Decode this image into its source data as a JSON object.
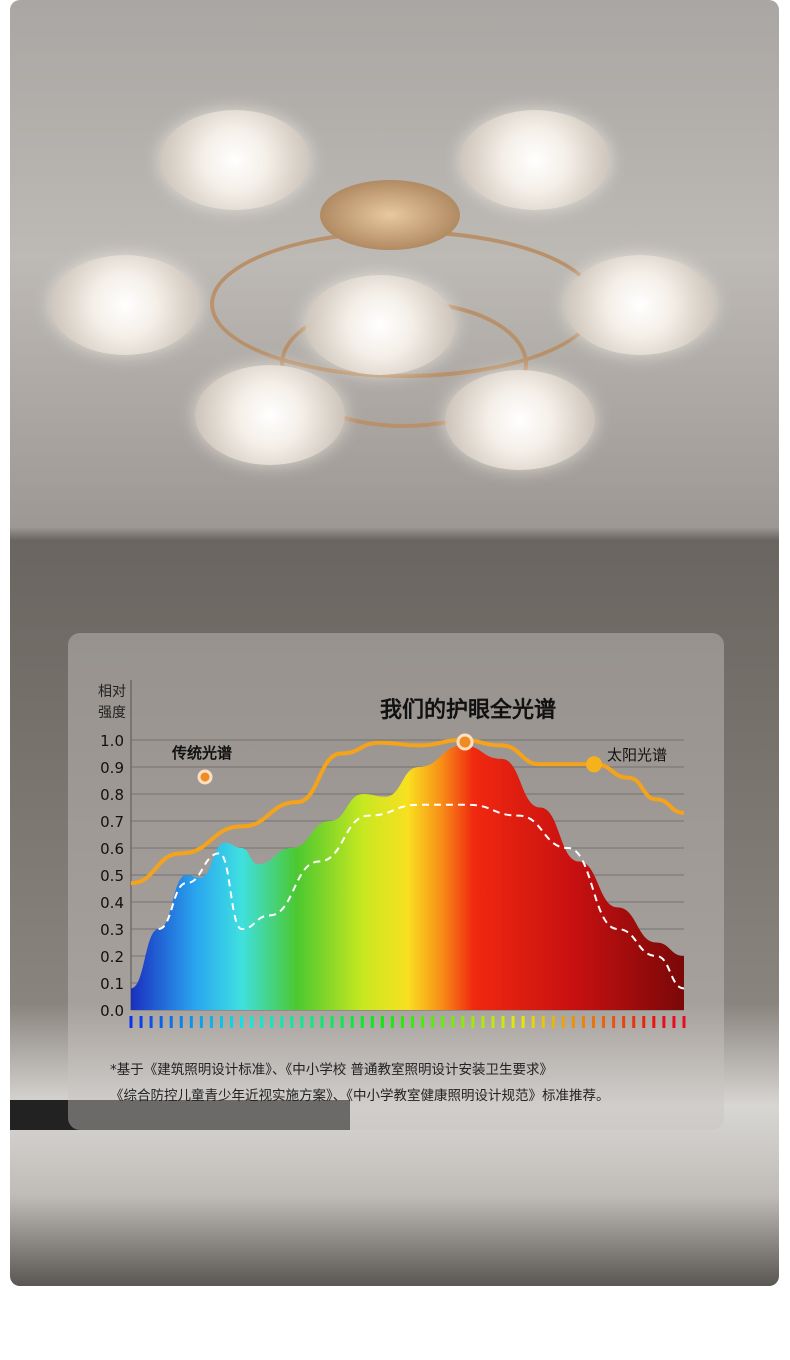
{
  "chart_data": {
    "type": "area",
    "title": "我们的护眼全光谱",
    "ylabel": "相对\n强度",
    "xlabel": "",
    "ylim": [
      0,
      1.0
    ],
    "yticks": [
      "0.0",
      "0.1",
      "0.2",
      "0.3",
      "0.4",
      "0.5",
      "0.6",
      "0.7",
      "0.8",
      "0.9",
      "1.0"
    ],
    "grid": true,
    "series": [
      {
        "name": "我们的护眼全光谱",
        "style": "gradient-fill",
        "x": [
          0,
          0.05,
          0.1,
          0.125,
          0.17,
          0.2,
          0.23,
          0.29,
          0.36,
          0.42,
          0.46,
          0.52,
          0.6,
          0.67,
          0.74,
          0.81,
          0.88,
          0.95,
          1
        ],
        "y": [
          0.08,
          0.3,
          0.5,
          0.49,
          0.62,
          0.6,
          0.54,
          0.6,
          0.7,
          0.8,
          0.79,
          0.9,
          0.98,
          0.93,
          0.75,
          0.55,
          0.38,
          0.25,
          0.2
        ]
      },
      {
        "name": "太阳光谱",
        "color": "#f5a31a",
        "x": [
          0,
          0.09,
          0.2,
          0.3,
          0.38,
          0.45,
          0.52,
          0.6,
          0.67,
          0.74,
          0.84,
          0.9,
          0.95,
          1
        ],
        "y": [
          0.47,
          0.58,
          0.68,
          0.77,
          0.95,
          0.99,
          0.98,
          1.0,
          0.98,
          0.91,
          0.91,
          0.86,
          0.78,
          0.73
        ]
      },
      {
        "name": "传统光谱",
        "color": "#ffffff",
        "style": "dashed",
        "x": [
          0.05,
          0.1,
          0.16,
          0.2,
          0.25,
          0.34,
          0.43,
          0.52,
          0.61,
          0.7,
          0.79,
          0.88,
          0.95,
          1
        ],
        "y": [
          0.3,
          0.47,
          0.58,
          0.3,
          0.35,
          0.55,
          0.72,
          0.76,
          0.76,
          0.72,
          0.6,
          0.3,
          0.2,
          0.08
        ]
      }
    ],
    "legend": [
      {
        "label": "传统光谱",
        "color": "#f08a24"
      },
      {
        "label": "太阳光谱",
        "color": "#f5b21a"
      }
    ]
  },
  "note": {
    "line1": "*基于《建筑照明设计标准》、《中小学校 普通教室照明设计安装卫生要求》",
    "line2": "《综合防控儿童青少年近视实施方案》、《中小学教室健康照明设计规范》标准推荐。"
  }
}
